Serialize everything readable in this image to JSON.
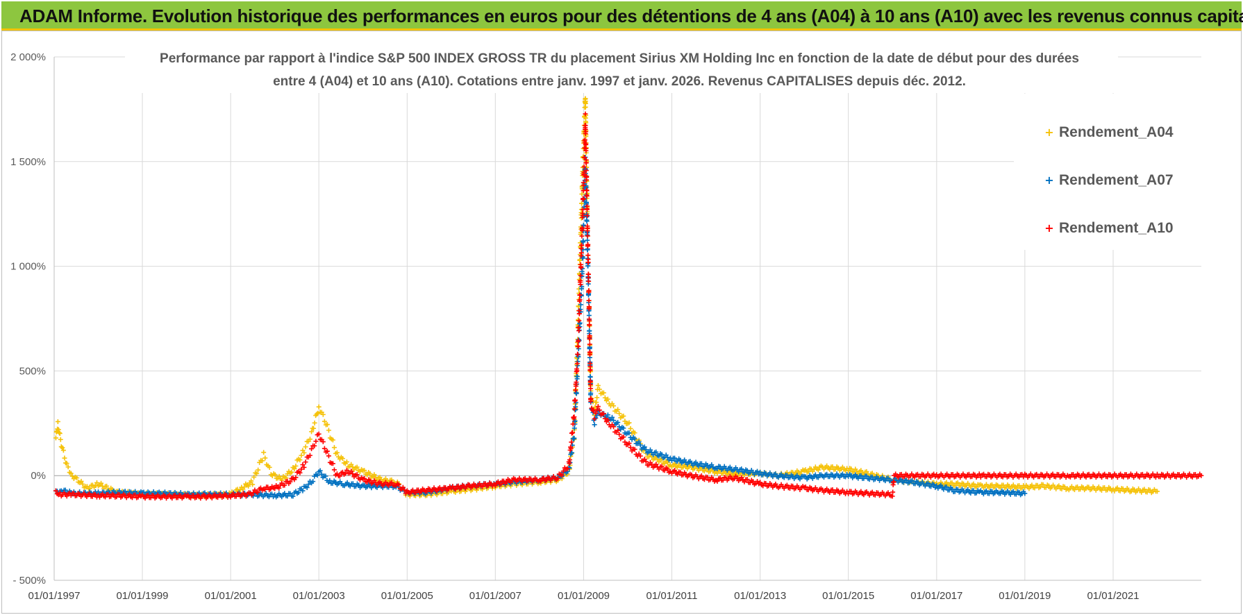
{
  "header": {
    "banner_title": "ADAM Informe. Evolution historique des performances en euros pour des détentions de 4 ans (A04) à 10 ans (A10) avec les revenus connus capitalisés"
  },
  "colors": {
    "banner_bg": "#8dc63f",
    "banner_accent": "#f3c300",
    "A04": "#f5c20a",
    "A07": "#0070c0",
    "A10": "#ff0000"
  },
  "chart_data": {
    "type": "scatter",
    "marker": "plus",
    "title_lines": [
      "Performance par rapport à l'indice S&P 500 INDEX GROSS TR  du placement Sirius XM Holding Inc en fonction de la date de début pour des durées",
      "entre 4 (A04) et 10 ans (A10). Cotations entre janv. 1997 et janv. 2026. Revenus CAPITALISES depuis déc. 2012."
    ],
    "ylim": [
      -500,
      2000
    ],
    "yticks": [
      -500,
      0,
      500,
      1000,
      1500,
      2000
    ],
    "ytick_labels": [
      "- 500%",
      "0%",
      "500%",
      "1 000%",
      "1 500%",
      "2 000%"
    ],
    "xlim": [
      "1997-01-01",
      "2023-01-01"
    ],
    "xticks": [
      "1997-01-01",
      "1999-01-01",
      "2001-01-01",
      "2003-01-01",
      "2005-01-01",
      "2007-01-01",
      "2009-01-01",
      "2011-01-01",
      "2013-01-01",
      "2015-01-01",
      "2017-01-01",
      "2019-01-01",
      "2021-01-01"
    ],
    "xtick_labels": [
      "01/01/1997",
      "01/01/1999",
      "01/01/2001",
      "01/01/2003",
      "01/01/2005",
      "01/01/2007",
      "01/01/2009",
      "01/01/2011",
      "01/01/2013",
      "01/01/2015",
      "01/01/2017",
      "01/01/2019",
      "01/01/2021"
    ],
    "grid": true,
    "legend_position": "top-right",
    "series": [
      {
        "name": "Rendement_A04",
        "color": "#f5c20a",
        "points": [
          [
            "1997-01-15",
            180
          ],
          [
            "1997-02-01",
            250
          ],
          [
            "1997-03-01",
            150
          ],
          [
            "1997-04-15",
            50
          ],
          [
            "1997-06-01",
            0
          ],
          [
            "1997-08-01",
            -30
          ],
          [
            "1997-10-01",
            -60
          ],
          [
            "1998-01-01",
            -40
          ],
          [
            "1998-06-01",
            -80
          ],
          [
            "1999-01-01",
            -90
          ],
          [
            "1999-06-01",
            -90
          ],
          [
            "2000-01-01",
            -95
          ],
          [
            "2000-06-01",
            -95
          ],
          [
            "2001-01-01",
            -90
          ],
          [
            "2001-04-01",
            -60
          ],
          [
            "2001-07-01",
            -30
          ],
          [
            "2001-10-01",
            100
          ],
          [
            "2001-12-01",
            10
          ],
          [
            "2002-03-01",
            -20
          ],
          [
            "2002-06-01",
            30
          ],
          [
            "2002-09-01",
            120
          ],
          [
            "2002-11-01",
            200
          ],
          [
            "2003-01-01",
            330
          ],
          [
            "2003-03-01",
            250
          ],
          [
            "2003-06-01",
            100
          ],
          [
            "2003-09-01",
            50
          ],
          [
            "2004-01-01",
            20
          ],
          [
            "2004-06-01",
            -20
          ],
          [
            "2004-10-01",
            -30
          ],
          [
            "2005-01-01",
            -90
          ],
          [
            "2005-06-01",
            -90
          ],
          [
            "2006-01-01",
            -75
          ],
          [
            "2006-06-01",
            -65
          ],
          [
            "2007-01-01",
            -50
          ],
          [
            "2007-06-01",
            -40
          ],
          [
            "2008-01-01",
            -30
          ],
          [
            "2008-06-01",
            -20
          ],
          [
            "2008-09-01",
            20
          ],
          [
            "2008-10-15",
            200
          ],
          [
            "2008-11-15",
            700
          ],
          [
            "2008-12-15",
            1300
          ],
          [
            "2009-01-01",
            1600
          ],
          [
            "2009-01-15",
            1830
          ],
          [
            "2009-02-01",
            1200
          ],
          [
            "2009-02-15",
            800
          ],
          [
            "2009-03-01",
            400
          ],
          [
            "2009-04-01",
            300
          ],
          [
            "2009-05-01",
            420
          ],
          [
            "2009-08-01",
            350
          ],
          [
            "2010-01-01",
            250
          ],
          [
            "2010-06-01",
            100
          ],
          [
            "2011-01-01",
            50
          ],
          [
            "2011-06-01",
            40
          ],
          [
            "2012-01-01",
            20
          ],
          [
            "2012-06-01",
            10
          ],
          [
            "2013-01-01",
            10
          ],
          [
            "2013-06-01",
            0
          ],
          [
            "2014-01-01",
            20
          ],
          [
            "2014-06-01",
            40
          ],
          [
            "2015-01-01",
            30
          ],
          [
            "2015-06-01",
            10
          ],
          [
            "2016-01-01",
            -20
          ],
          [
            "2016-06-01",
            -30
          ],
          [
            "2017-01-01",
            -40
          ],
          [
            "2017-06-01",
            -40
          ],
          [
            "2018-01-01",
            -50
          ],
          [
            "2018-06-01",
            -50
          ],
          [
            "2019-01-01",
            -55
          ],
          [
            "2019-06-01",
            -50
          ],
          [
            "2020-01-01",
            -60
          ],
          [
            "2020-06-01",
            -60
          ],
          [
            "2021-01-01",
            -65
          ],
          [
            "2021-06-01",
            -70
          ],
          [
            "2022-01-01",
            -75
          ]
        ]
      },
      {
        "name": "Rendement_A07",
        "color": "#0070c0",
        "points": [
          [
            "1997-01-15",
            -80
          ],
          [
            "1997-03-01",
            -70
          ],
          [
            "1997-06-01",
            -85
          ],
          [
            "1998-01-01",
            -85
          ],
          [
            "1998-06-01",
            -80
          ],
          [
            "1999-01-01",
            -85
          ],
          [
            "1999-06-01",
            -85
          ],
          [
            "2000-01-01",
            -90
          ],
          [
            "2000-06-01",
            -90
          ],
          [
            "2001-01-01",
            -90
          ],
          [
            "2001-06-01",
            -90
          ],
          [
            "2002-01-01",
            -95
          ],
          [
            "2002-06-01",
            -90
          ],
          [
            "2002-09-01",
            -60
          ],
          [
            "2002-11-01",
            -30
          ],
          [
            "2003-01-01",
            20
          ],
          [
            "2003-04-01",
            -30
          ],
          [
            "2003-08-01",
            -40
          ],
          [
            "2004-01-01",
            -50
          ],
          [
            "2004-06-01",
            -50
          ],
          [
            "2004-10-01",
            -50
          ],
          [
            "2005-01-01",
            -80
          ],
          [
            "2005-06-01",
            -80
          ],
          [
            "2006-01-01",
            -60
          ],
          [
            "2006-06-01",
            -50
          ],
          [
            "2007-01-01",
            -40
          ],
          [
            "2007-06-01",
            -30
          ],
          [
            "2008-01-01",
            -20
          ],
          [
            "2008-06-01",
            -10
          ],
          [
            "2008-09-01",
            30
          ],
          [
            "2008-10-15",
            200
          ],
          [
            "2008-11-15",
            550
          ],
          [
            "2008-12-15",
            900
          ],
          [
            "2009-01-01",
            1200
          ],
          [
            "2009-01-15",
            1500
          ],
          [
            "2009-02-01",
            1100
          ],
          [
            "2009-02-15",
            750
          ],
          [
            "2009-03-01",
            350
          ],
          [
            "2009-04-01",
            250
          ],
          [
            "2009-05-01",
            300
          ],
          [
            "2009-08-01",
            280
          ],
          [
            "2010-01-01",
            200
          ],
          [
            "2010-06-01",
            120
          ],
          [
            "2011-01-01",
            80
          ],
          [
            "2011-06-01",
            60
          ],
          [
            "2012-01-01",
            40
          ],
          [
            "2012-06-01",
            30
          ],
          [
            "2013-01-01",
            10
          ],
          [
            "2013-06-01",
            0
          ],
          [
            "2014-01-01",
            -10
          ],
          [
            "2014-06-01",
            0
          ],
          [
            "2015-01-01",
            0
          ],
          [
            "2015-06-01",
            -10
          ],
          [
            "2016-01-01",
            -20
          ],
          [
            "2016-06-01",
            -30
          ],
          [
            "2017-01-01",
            -50
          ],
          [
            "2017-06-01",
            -70
          ],
          [
            "2018-01-01",
            -80
          ],
          [
            "2018-06-01",
            -80
          ],
          [
            "2019-01-01",
            -85
          ]
        ]
      },
      {
        "name": "Rendement_A10",
        "color": "#ff0000",
        "points": [
          [
            "1997-01-15",
            -80
          ],
          [
            "1997-03-01",
            -90
          ],
          [
            "1997-06-01",
            -90
          ],
          [
            "1998-01-01",
            -95
          ],
          [
            "1998-06-01",
            -95
          ],
          [
            "1999-01-01",
            -100
          ],
          [
            "1999-06-01",
            -100
          ],
          [
            "2000-01-01",
            -100
          ],
          [
            "2000-06-01",
            -100
          ],
          [
            "2001-01-01",
            -95
          ],
          [
            "2001-06-01",
            -90
          ],
          [
            "2001-10-01",
            -60
          ],
          [
            "2002-01-01",
            -60
          ],
          [
            "2002-06-01",
            -20
          ],
          [
            "2002-09-01",
            50
          ],
          [
            "2002-11-01",
            120
          ],
          [
            "2003-01-01",
            200
          ],
          [
            "2003-03-01",
            120
          ],
          [
            "2003-06-01",
            0
          ],
          [
            "2003-09-01",
            20
          ],
          [
            "2004-01-01",
            -20
          ],
          [
            "2004-06-01",
            -40
          ],
          [
            "2004-10-01",
            -40
          ],
          [
            "2005-01-01",
            -80
          ],
          [
            "2005-06-01",
            -70
          ],
          [
            "2006-01-01",
            -60
          ],
          [
            "2006-06-01",
            -50
          ],
          [
            "2007-01-01",
            -40
          ],
          [
            "2007-06-01",
            -20
          ],
          [
            "2008-01-01",
            -20
          ],
          [
            "2008-06-01",
            -10
          ],
          [
            "2008-09-01",
            50
          ],
          [
            "2008-10-15",
            300
          ],
          [
            "2008-11-15",
            600
          ],
          [
            "2008-12-15",
            1100
          ],
          [
            "2009-01-01",
            1400
          ],
          [
            "2009-01-15",
            1700
          ],
          [
            "2009-02-01",
            1200
          ],
          [
            "2009-02-15",
            800
          ],
          [
            "2009-03-01",
            350
          ],
          [
            "2009-04-01",
            280
          ],
          [
            "2009-05-01",
            320
          ],
          [
            "2009-08-01",
            250
          ],
          [
            "2010-01-01",
            150
          ],
          [
            "2010-06-01",
            60
          ],
          [
            "2011-01-01",
            20
          ],
          [
            "2011-06-01",
            0
          ],
          [
            "2012-01-01",
            -20
          ],
          [
            "2012-06-01",
            -10
          ],
          [
            "2013-01-01",
            -40
          ],
          [
            "2013-06-01",
            -50
          ],
          [
            "2014-01-01",
            -60
          ],
          [
            "2014-06-01",
            -70
          ],
          [
            "2015-01-01",
            -80
          ],
          [
            "2015-06-01",
            -85
          ],
          [
            "2016-01-01",
            -90
          ],
          [
            "2016-01-15",
            0
          ],
          [
            "2017-01-01",
            0
          ],
          [
            "2018-01-01",
            0
          ],
          [
            "2019-01-01",
            0
          ],
          [
            "2020-01-01",
            0
          ],
          [
            "2021-01-01",
            0
          ],
          [
            "2022-01-01",
            0
          ],
          [
            "2022-12-31",
            0
          ]
        ]
      }
    ]
  }
}
